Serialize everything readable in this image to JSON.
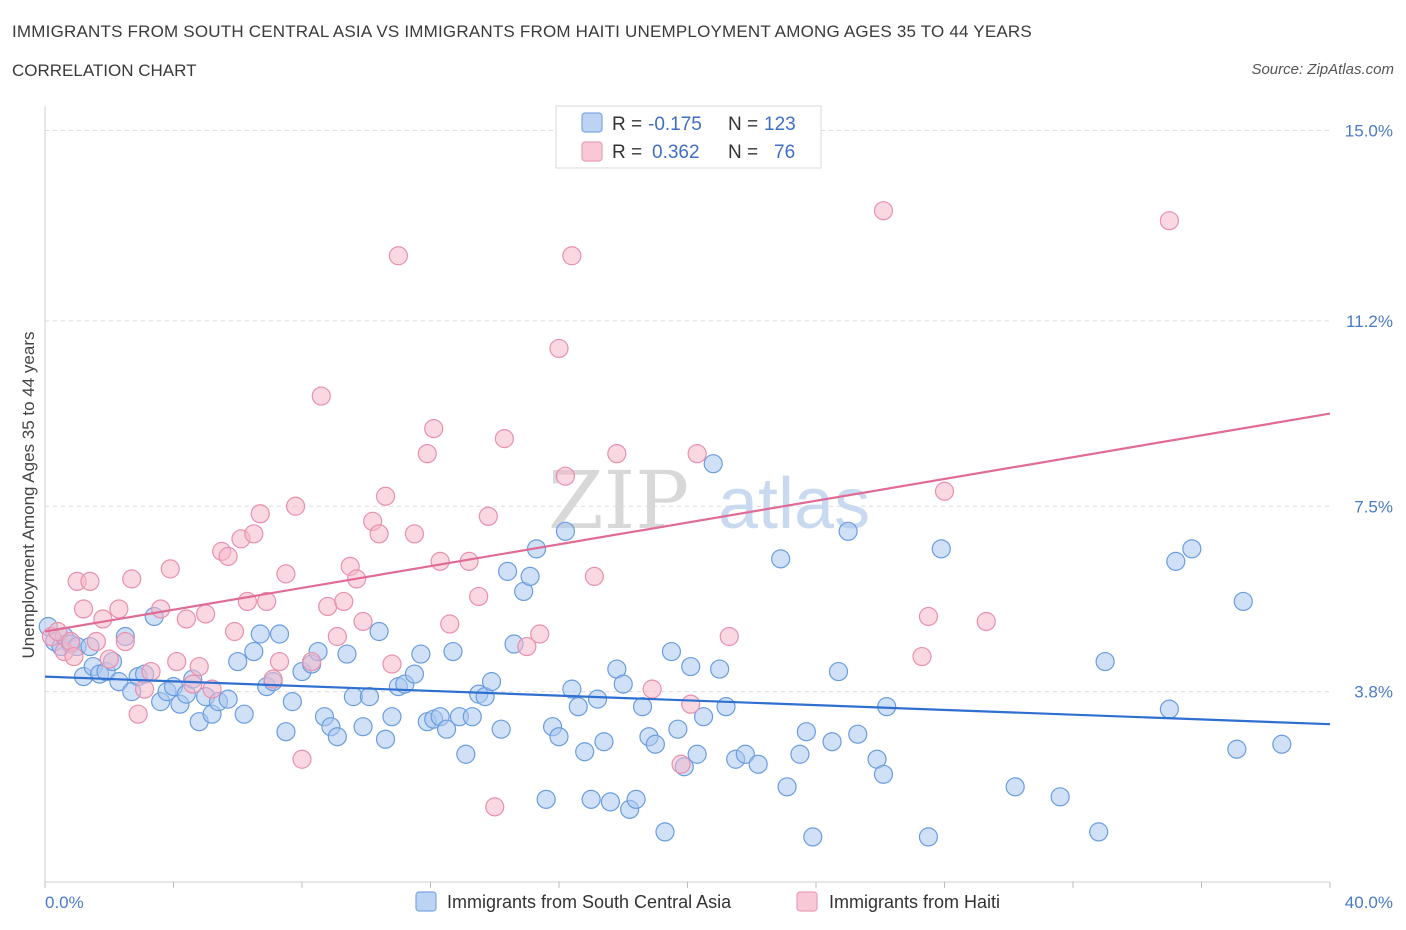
{
  "title": "IMMIGRANTS FROM SOUTH CENTRAL ASIA VS IMMIGRANTS FROM HAITI UNEMPLOYMENT AMONG AGES 35 TO 44 YEARS",
  "subtitle": "CORRELATION CHART",
  "source": "Source: ZipAtlas.com",
  "watermark": {
    "zip": "ZIP",
    "atlas": "atlas"
  },
  "legend_box": {
    "rows": [
      {
        "r_label": "R =",
        "r_value": "-0.175",
        "n_label": "N =",
        "n_value": "123"
      },
      {
        "r_label": "R =",
        "r_value": "0.362",
        "n_label": "N =",
        "n_value": "76"
      }
    ]
  },
  "colors": {
    "blue_fill": "#a9c6ef",
    "blue_stroke": "#6a9de0",
    "blue_line": "#2f6fd0",
    "pink_fill": "#f5b8cb",
    "pink_stroke": "#e890ad",
    "pink_line": "#e06c96",
    "grid": "#dcdcdc",
    "axis_text": "#4a7ac8"
  },
  "chart_data": {
    "type": "scatter",
    "xlabel": "",
    "ylabel": "Unemployment Among Ages 35 to 44 years",
    "x_tick_labels": [
      "0.0%",
      "40.0%"
    ],
    "y_tick_labels": [
      "15.0%",
      "11.2%",
      "7.5%",
      "3.8%"
    ],
    "y_ticks": [
      15.0,
      11.2,
      7.5,
      3.8
    ],
    "xlim": [
      0,
      40
    ],
    "ylim": [
      0,
      15.25
    ],
    "grid": true,
    "series": [
      {
        "name": "Immigrants from South Central Asia",
        "color": "#a9c6ef",
        "trend": {
          "x0": 0,
          "y0": 4.1,
          "x1": 40,
          "y1": 3.15
        },
        "points": [
          [
            0.1,
            5.1
          ],
          [
            0.3,
            4.8
          ],
          [
            0.5,
            4.7
          ],
          [
            0.6,
            4.9
          ],
          [
            0.8,
            4.75
          ],
          [
            1.0,
            4.7
          ],
          [
            1.2,
            4.1
          ],
          [
            1.5,
            4.3
          ],
          [
            1.7,
            4.15
          ],
          [
            1.9,
            4.2
          ],
          [
            2.1,
            4.4
          ],
          [
            2.3,
            4.0
          ],
          [
            2.5,
            4.9
          ],
          [
            2.7,
            3.8
          ],
          [
            2.9,
            4.1
          ],
          [
            3.1,
            4.15
          ],
          [
            3.4,
            5.3
          ],
          [
            3.6,
            3.6
          ],
          [
            3.8,
            3.8
          ],
          [
            4.0,
            3.9
          ],
          [
            4.2,
            3.55
          ],
          [
            4.4,
            3.75
          ],
          [
            4.6,
            4.05
          ],
          [
            4.8,
            3.2
          ],
          [
            5.0,
            3.7
          ],
          [
            5.2,
            3.35
          ],
          [
            5.4,
            3.6
          ],
          [
            5.7,
            3.65
          ],
          [
            6.0,
            4.4
          ],
          [
            6.2,
            3.35
          ],
          [
            6.5,
            4.6
          ],
          [
            6.7,
            4.95
          ],
          [
            6.9,
            3.9
          ],
          [
            7.1,
            4.0
          ],
          [
            7.3,
            4.95
          ],
          [
            7.5,
            3.0
          ],
          [
            7.7,
            3.6
          ],
          [
            8.0,
            4.2
          ],
          [
            8.3,
            4.35
          ],
          [
            8.5,
            4.6
          ],
          [
            8.7,
            3.3
          ],
          [
            8.9,
            3.1
          ],
          [
            9.1,
            2.9
          ],
          [
            9.4,
            4.55
          ],
          [
            9.6,
            3.7
          ],
          [
            9.9,
            3.1
          ],
          [
            10.1,
            3.7
          ],
          [
            10.4,
            5.0
          ],
          [
            10.6,
            2.85
          ],
          [
            10.8,
            3.3
          ],
          [
            11.0,
            3.9
          ],
          [
            11.2,
            3.95
          ],
          [
            11.5,
            4.15
          ],
          [
            11.7,
            4.55
          ],
          [
            11.9,
            3.2
          ],
          [
            12.1,
            3.25
          ],
          [
            12.3,
            3.3
          ],
          [
            12.5,
            3.05
          ],
          [
            12.7,
            4.6
          ],
          [
            12.9,
            3.3
          ],
          [
            13.1,
            2.55
          ],
          [
            13.3,
            3.3
          ],
          [
            13.5,
            3.75
          ],
          [
            13.7,
            3.7
          ],
          [
            13.9,
            4.0
          ],
          [
            14.2,
            3.05
          ],
          [
            14.4,
            6.2
          ],
          [
            14.6,
            4.75
          ],
          [
            14.9,
            5.8
          ],
          [
            15.1,
            6.1
          ],
          [
            15.3,
            6.65
          ],
          [
            15.6,
            1.65
          ],
          [
            15.8,
            3.1
          ],
          [
            16.0,
            2.9
          ],
          [
            16.2,
            7.0
          ],
          [
            16.4,
            3.85
          ],
          [
            16.6,
            3.5
          ],
          [
            16.8,
            2.6
          ],
          [
            17.0,
            1.65
          ],
          [
            17.2,
            3.65
          ],
          [
            17.4,
            2.8
          ],
          [
            17.6,
            1.6
          ],
          [
            17.8,
            4.25
          ],
          [
            18.0,
            3.95
          ],
          [
            18.2,
            1.45
          ],
          [
            18.4,
            1.65
          ],
          [
            18.6,
            3.5
          ],
          [
            18.8,
            2.9
          ],
          [
            19.0,
            2.75
          ],
          [
            19.3,
            1.0
          ],
          [
            19.5,
            4.6
          ],
          [
            19.7,
            3.05
          ],
          [
            19.9,
            2.3
          ],
          [
            20.1,
            4.3
          ],
          [
            20.3,
            2.55
          ],
          [
            20.5,
            3.3
          ],
          [
            20.8,
            8.35
          ],
          [
            21.0,
            4.25
          ],
          [
            21.2,
            3.5
          ],
          [
            21.5,
            2.45
          ],
          [
            21.8,
            2.55
          ],
          [
            22.2,
            2.35
          ],
          [
            22.9,
            6.45
          ],
          [
            23.1,
            1.9
          ],
          [
            23.5,
            2.55
          ],
          [
            23.7,
            3.0
          ],
          [
            23.9,
            0.9
          ],
          [
            24.5,
            2.8
          ],
          [
            24.7,
            4.2
          ],
          [
            25.0,
            7.0
          ],
          [
            25.3,
            2.95
          ],
          [
            25.9,
            2.45
          ],
          [
            26.1,
            2.15
          ],
          [
            26.2,
            3.5
          ],
          [
            27.5,
            0.9
          ],
          [
            27.9,
            6.65
          ],
          [
            30.2,
            1.9
          ],
          [
            31.6,
            1.7
          ],
          [
            32.8,
            1.0
          ],
          [
            33.0,
            4.4
          ],
          [
            35.0,
            3.45
          ],
          [
            35.2,
            6.4
          ],
          [
            35.7,
            6.65
          ],
          [
            37.1,
            2.65
          ],
          [
            37.3,
            5.6
          ],
          [
            38.5,
            2.75
          ],
          [
            1.4,
            4.7
          ]
        ]
      },
      {
        "name": "Immigrants from Haiti",
        "color": "#f5b8cb",
        "trend": {
          "x0": 0,
          "y0": 5.0,
          "x1": 40,
          "y1": 9.35
        },
        "points": [
          [
            0.2,
            4.9
          ],
          [
            0.4,
            5.0
          ],
          [
            0.6,
            4.6
          ],
          [
            0.8,
            4.8
          ],
          [
            0.9,
            4.5
          ],
          [
            1.0,
            6.0
          ],
          [
            1.2,
            5.45
          ],
          [
            1.4,
            6.0
          ],
          [
            1.6,
            4.8
          ],
          [
            1.8,
            5.25
          ],
          [
            2.0,
            4.45
          ],
          [
            2.3,
            5.45
          ],
          [
            2.5,
            4.8
          ],
          [
            2.7,
            6.05
          ],
          [
            2.9,
            3.35
          ],
          [
            3.1,
            3.85
          ],
          [
            3.3,
            4.2
          ],
          [
            3.6,
            5.45
          ],
          [
            3.9,
            6.25
          ],
          [
            4.1,
            4.4
          ],
          [
            4.4,
            5.25
          ],
          [
            4.6,
            3.95
          ],
          [
            4.8,
            4.3
          ],
          [
            5.0,
            5.35
          ],
          [
            5.2,
            3.85
          ],
          [
            5.5,
            6.6
          ],
          [
            5.7,
            6.5
          ],
          [
            5.9,
            5.0
          ],
          [
            6.1,
            6.85
          ],
          [
            6.3,
            5.6
          ],
          [
            6.5,
            6.95
          ],
          [
            6.7,
            7.35
          ],
          [
            6.9,
            5.6
          ],
          [
            7.1,
            4.05
          ],
          [
            7.3,
            4.4
          ],
          [
            7.5,
            6.15
          ],
          [
            7.8,
            7.5
          ],
          [
            8.0,
            2.45
          ],
          [
            8.3,
            4.4
          ],
          [
            8.6,
            9.7
          ],
          [
            8.8,
            5.5
          ],
          [
            9.1,
            4.9
          ],
          [
            9.3,
            5.6
          ],
          [
            9.5,
            6.3
          ],
          [
            9.7,
            6.05
          ],
          [
            9.9,
            5.2
          ],
          [
            10.2,
            7.2
          ],
          [
            10.4,
            6.95
          ],
          [
            10.6,
            7.7
          ],
          [
            10.8,
            4.35
          ],
          [
            11.0,
            12.5
          ],
          [
            11.5,
            6.95
          ],
          [
            11.9,
            8.55
          ],
          [
            12.1,
            9.05
          ],
          [
            12.3,
            6.4
          ],
          [
            12.6,
            5.15
          ],
          [
            13.2,
            6.4
          ],
          [
            13.5,
            5.7
          ],
          [
            13.8,
            7.3
          ],
          [
            14.0,
            1.5
          ],
          [
            14.3,
            8.85
          ],
          [
            15.0,
            4.7
          ],
          [
            15.4,
            4.95
          ],
          [
            16.0,
            10.65
          ],
          [
            16.2,
            8.1
          ],
          [
            16.4,
            12.5
          ],
          [
            17.1,
            6.1
          ],
          [
            17.8,
            8.55
          ],
          [
            18.9,
            3.85
          ],
          [
            19.8,
            2.35
          ],
          [
            20.1,
            3.55
          ],
          [
            20.3,
            8.55
          ],
          [
            21.3,
            4.9
          ],
          [
            26.1,
            13.4
          ],
          [
            27.3,
            4.5
          ],
          [
            27.5,
            5.3
          ],
          [
            28.0,
            7.8
          ],
          [
            29.3,
            5.2
          ],
          [
            35.0,
            13.2
          ]
        ]
      }
    ]
  },
  "bottom_legend": [
    {
      "label": "Immigrants from South Central Asia",
      "color": "#a9c6ef"
    },
    {
      "label": "Immigrants from Haiti",
      "color": "#f5b8cb"
    }
  ]
}
